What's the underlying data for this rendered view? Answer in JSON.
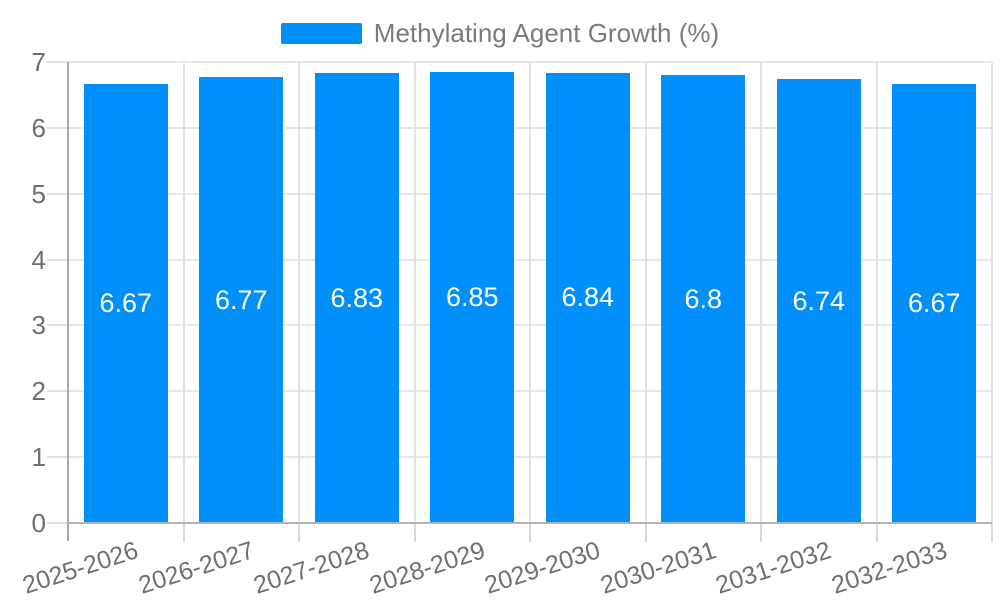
{
  "chart_data": {
    "type": "bar",
    "title": "",
    "legend_entries": [
      "Methylating Agent Growth (%)"
    ],
    "legend_position": "top",
    "categories": [
      "2025-2026",
      "2026-2027",
      "2027-2028",
      "2028-2029",
      "2029-2030",
      "2030-2031",
      "2031-2032",
      "2032-2033"
    ],
    "series": [
      {
        "name": "Methylating Agent Growth (%)",
        "values": [
          6.67,
          6.77,
          6.83,
          6.85,
          6.84,
          6.8,
          6.74,
          6.67
        ]
      }
    ],
    "bar_value_labels": [
      "6.67",
      "6.77",
      "6.83",
      "6.85",
      "6.84",
      "6.8",
      "6.74",
      "6.67"
    ],
    "xlabel": "",
    "ylabel": "",
    "ylim": [
      0,
      7
    ],
    "yticks": [
      0,
      1,
      2,
      3,
      4,
      5,
      6,
      7
    ],
    "ytick_labels": [
      "0",
      "1",
      "2",
      "3",
      "4",
      "5",
      "6",
      "7"
    ],
    "grid": true,
    "colors": {
      "bar": "#008FFB",
      "bar_value_label": "#ffffff",
      "axis_tick_label": "#6e6e6e",
      "legend_text": "#7b7b7b",
      "gridline": "#e7e7e7",
      "axis_line": "#a9a9a9"
    }
  }
}
